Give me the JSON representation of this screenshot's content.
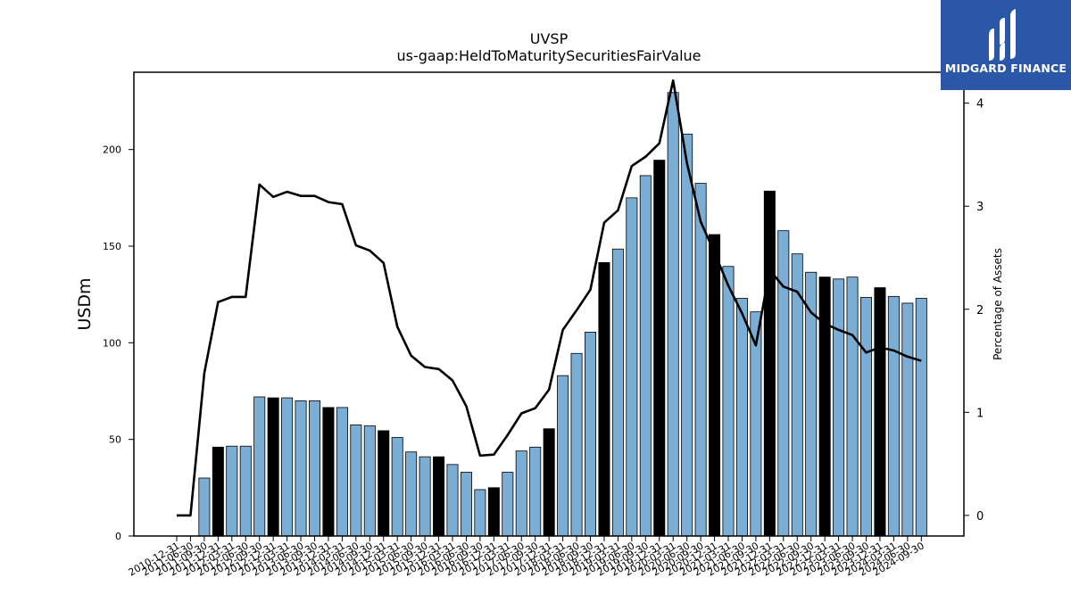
{
  "chart_data": {
    "type": "bar",
    "title": "UVSP",
    "subtitle": "us-gaap:HeldToMaturitySecuritiesFairValue",
    "ylabel": "USDm",
    "y2label": "Percentage of Assets",
    "ylim": [
      0,
      240
    ],
    "y2lim": [
      -0.2,
      4.3
    ],
    "yticks": [
      0,
      50,
      100,
      150,
      200
    ],
    "y2ticks": [
      0,
      1,
      2,
      3,
      4
    ],
    "grid": false,
    "colors": {
      "bar": "#7aaed4",
      "highlight": "#000000",
      "line": "#000000"
    },
    "categories": [
      "2010-12-31",
      "2011-06-30",
      "2011-09-30",
      "2011-12-31",
      "2012-03-31",
      "2012-06-30",
      "2012-09-30",
      "2012-12-31",
      "2013-03-31",
      "2013-06-30",
      "2013-09-30",
      "2013-12-31",
      "2014-03-31",
      "2014-06-30",
      "2014-09-30",
      "2014-12-31",
      "2015-03-31",
      "2015-06-30",
      "2015-09-30",
      "2015-12-31",
      "2016-03-31",
      "2016-06-30",
      "2016-09-30",
      "2016-12-31",
      "2017-03-31",
      "2017-06-30",
      "2017-09-30",
      "2017-12-31",
      "2018-03-31",
      "2018-06-30",
      "2018-09-30",
      "2018-12-31",
      "2019-03-31",
      "2019-06-30",
      "2019-09-30",
      "2019-12-31",
      "2020-03-31",
      "2020-06-30",
      "2020-09-30",
      "2020-12-31",
      "2021-03-31",
      "2021-06-30",
      "2021-09-30",
      "2021-12-31",
      "2022-03-31",
      "2022-06-30",
      "2022-09-30",
      "2022-12-31",
      "2023-03-31",
      "2023-06-30",
      "2023-09-30",
      "2023-12-31",
      "2024-03-31",
      "2024-06-30",
      "2024-09-30"
    ],
    "tick_labels": [
      "2010-12-31",
      "2011-06-30",
      "2011-09-30",
      "2011-12-31",
      "2012-03-31",
      "2012-06-30",
      "2012-09-30",
      "2012-12-31",
      "2013-03-31",
      "2013-06-30",
      "2013-09-30",
      "2013-12-31",
      "2014-03-31",
      "2014-06-30",
      "2014-09-30",
      "2014-12-31",
      "2015-03-31",
      "2015-06-30",
      "2015-09-30",
      "2015-12-31",
      "2016-03-31",
      "2016-06-30",
      "2016-09-30",
      "2016-12-31",
      "2017-03-31",
      "2017-06-30",
      "2017-09-30",
      "2017-12-31",
      "2018-03-31",
      "2018-06-30",
      "2018-09-30",
      "2018-12-31",
      "2019-03-31",
      "2019-06-30",
      "2019-09-30",
      "2019-12-31",
      "2020-03-31",
      "2020-06-30",
      "2020-09-30",
      "2020-12-31",
      "2021-03-31",
      "2021-06-30",
      "2021-09-30",
      "2021-12-31",
      "2022-03-31",
      "2022-06-30",
      "2022-09-30",
      "2022-12-31",
      "2023-03-31",
      "2023-06-30",
      "2023-09-30",
      "2023-12-31",
      "2024-03-31",
      "2024-06-30",
      "2024-09-30"
    ],
    "values": [
      0,
      0,
      30,
      46,
      46.5,
      46.5,
      72,
      71.5,
      71.5,
      70,
      70,
      66.5,
      66.5,
      57.5,
      57,
      54.5,
      51,
      43.5,
      41,
      41,
      37,
      33,
      24,
      25,
      33,
      44,
      46,
      55.5,
      83,
      94.5,
      105.5,
      141.5,
      148.5,
      175,
      186.5,
      194.5,
      229.5,
      208,
      182.5,
      156,
      139.5,
      123,
      116,
      178.5,
      158,
      146,
      136.5,
      134,
      133,
      134,
      123.5,
      128.5,
      124,
      120.5,
      123
    ],
    "highlight": [
      false,
      false,
      false,
      true,
      false,
      false,
      false,
      true,
      false,
      false,
      false,
      true,
      false,
      false,
      false,
      true,
      false,
      false,
      false,
      true,
      false,
      false,
      false,
      true,
      false,
      false,
      false,
      true,
      false,
      false,
      false,
      true,
      false,
      false,
      false,
      true,
      false,
      false,
      false,
      true,
      false,
      false,
      false,
      true,
      false,
      false,
      false,
      true,
      false,
      false,
      false,
      true,
      false,
      false,
      false
    ],
    "series": [
      {
        "name": "",
        "axis": "right",
        "values": [
          0,
          0,
          1.38,
          2.07,
          2.12,
          2.12,
          3.21,
          3.09,
          3.14,
          3.1,
          3.1,
          3.04,
          3.02,
          2.62,
          2.57,
          2.45,
          1.83,
          1.55,
          1.44,
          1.42,
          1.31,
          1.06,
          0.58,
          0.59,
          0.78,
          0.99,
          1.04,
          1.22,
          1.8,
          1.99,
          2.19,
          2.84,
          2.96,
          3.39,
          3.48,
          3.61,
          4.22,
          3.42,
          2.85,
          2.55,
          2.23,
          1.96,
          1.65,
          2.38,
          2.22,
          2.17,
          1.97,
          1.86,
          1.8,
          1.75,
          1.58,
          1.63,
          1.6,
          1.54,
          1.5
        ]
      }
    ]
  },
  "logo": {
    "name": "MIDGARD FINANCE"
  }
}
